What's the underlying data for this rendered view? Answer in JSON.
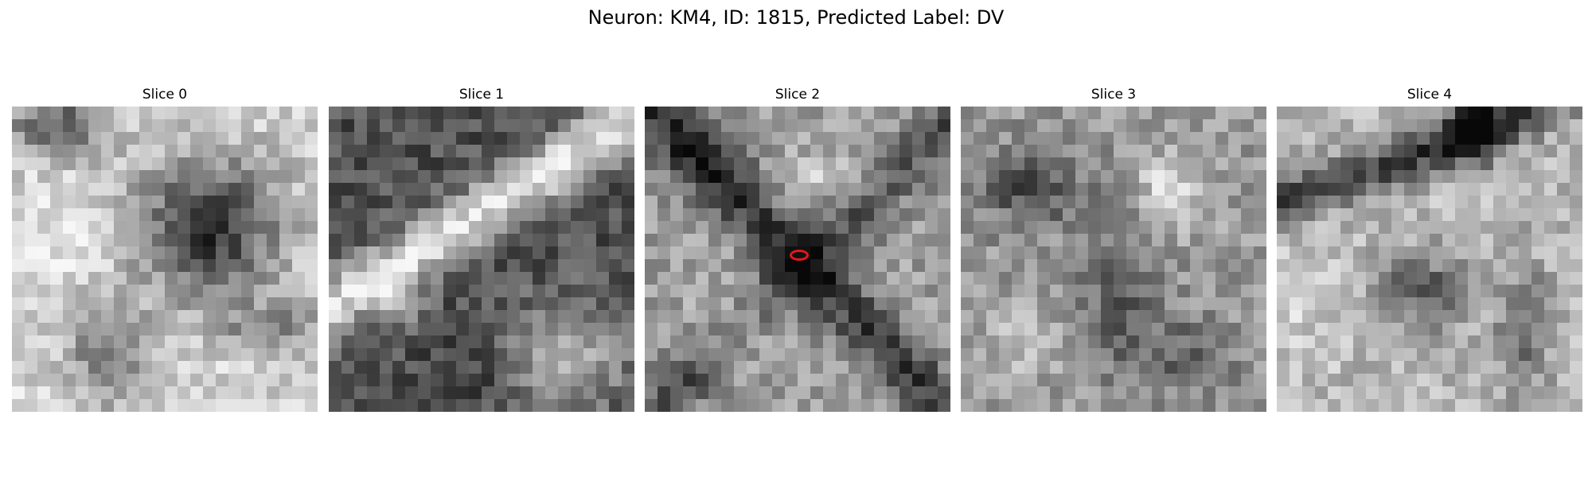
{
  "figure": {
    "title": "Neuron: KM4, ID: 1815, Predicted Label: DV"
  },
  "panels": [
    {
      "title": "Slice 0",
      "image": "grayscale-em-slice-blurred-dark-blob-right"
    },
    {
      "title": "Slice 1",
      "image": "grayscale-em-slice-diagonal-bright-band"
    },
    {
      "title": "Slice 2",
      "image": "grayscale-em-slice-with-red-marker"
    },
    {
      "title": "Slice 3",
      "image": "grayscale-em-slice-noisy-texture"
    },
    {
      "title": "Slice 4",
      "image": "grayscale-em-slice-dark-arc-top"
    }
  ],
  "marker": {
    "slice": 2,
    "color": "#e8161b",
    "shape": "ellipse"
  }
}
